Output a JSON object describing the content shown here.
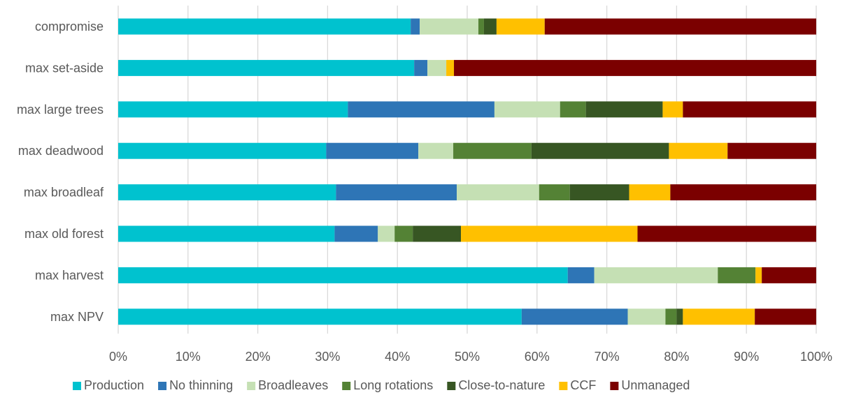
{
  "chart_data": {
    "type": "bar",
    "orientation": "horizontal",
    "stacked": true,
    "percent": true,
    "categories": [
      "compromise",
      "max set-aside",
      "max large trees",
      "max deadwood",
      "max  broadleaf",
      "max old forest",
      "max harvest",
      "max NPV"
    ],
    "series": [
      {
        "name": "Production",
        "color": "#00C2CF",
        "values": [
          41.9,
          42.4,
          32.9,
          29.8,
          31.2,
          31.0,
          64.4,
          57.8
        ]
      },
      {
        "name": "No thinning",
        "color": "#2E75B6",
        "values": [
          1.3,
          1.9,
          21.0,
          13.2,
          17.3,
          6.2,
          3.8,
          15.2
        ]
      },
      {
        "name": "Broadleaves",
        "color": "#C5E0B4",
        "values": [
          8.4,
          2.7,
          9.4,
          5.0,
          11.8,
          2.4,
          17.7,
          5.4
        ]
      },
      {
        "name": "Long rotations",
        "color": "#548235",
        "values": [
          0.8,
          0,
          3.7,
          11.2,
          4.4,
          2.6,
          5.4,
          1.6
        ]
      },
      {
        "name": "Close-to-nature",
        "color": "#375623",
        "values": [
          1.8,
          0,
          11.0,
          19.7,
          8.5,
          6.9,
          0,
          0.9
        ]
      },
      {
        "name": "CCF",
        "color": "#FFC000",
        "values": [
          6.9,
          1.1,
          2.9,
          8.4,
          5.9,
          25.3,
          0.9,
          10.3
        ]
      },
      {
        "name": "Unmanaged",
        "color": "#7B0000",
        "values": [
          38.9,
          51.9,
          19.1,
          12.7,
          20.9,
          25.6,
          7.8,
          8.8
        ]
      }
    ],
    "x_ticks": [
      "0%",
      "10%",
      "20%",
      "30%",
      "40%",
      "50%",
      "60%",
      "70%",
      "80%",
      "90%",
      "100%"
    ],
    "xlim": [
      0,
      100
    ],
    "grid": "vertical",
    "legend": "bottom",
    "title": "",
    "xlabel": "",
    "ylabel": ""
  }
}
